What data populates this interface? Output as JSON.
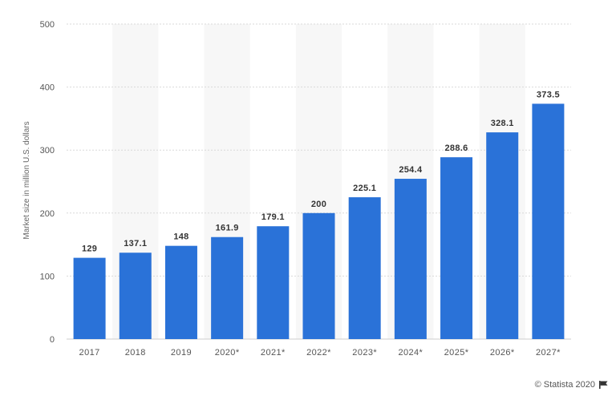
{
  "chart_data": {
    "type": "bar",
    "categories": [
      "2017",
      "2018",
      "2019",
      "2020*",
      "2021*",
      "2022*",
      "2023*",
      "2024*",
      "2025*",
      "2026*",
      "2027*"
    ],
    "values": [
      129,
      137.1,
      148,
      161.9,
      179.1,
      200,
      225.1,
      254.4,
      288.6,
      328.1,
      373.5
    ],
    "value_labels": [
      "129",
      "137.1",
      "148",
      "161.9",
      "179.1",
      "200",
      "225.1",
      "254.4",
      "288.6",
      "328.1",
      "373.5"
    ],
    "ylabel": "Market size in million U.S. dollars",
    "yticks": [
      "0",
      "100",
      "200",
      "300",
      "400",
      "500"
    ],
    "ylim": [
      0,
      500
    ],
    "grid": true,
    "bar_color": "#2a72d8"
  },
  "footer": {
    "credit": "© Statista 2020",
    "flag_icon": "flag-icon"
  }
}
